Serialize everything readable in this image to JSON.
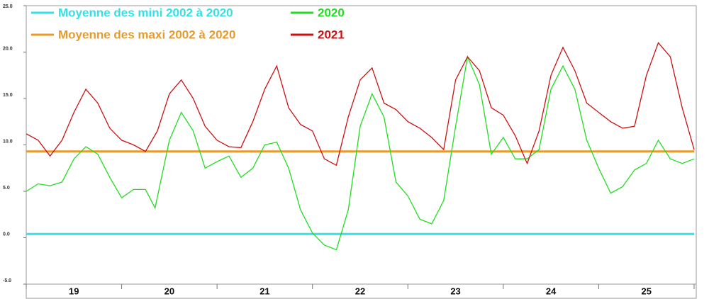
{
  "chart_data": {
    "type": "line",
    "categories": [
      "19",
      "20",
      "21",
      "22",
      "23",
      "24",
      "25"
    ],
    "xlim": [
      19,
      26
    ],
    "xticks": [
      19,
      20,
      21,
      22,
      23,
      24,
      25,
      26
    ],
    "ylim": [
      -5,
      25
    ],
    "yticks": [
      {
        "value": -5,
        "label": "-5.0"
      },
      {
        "value": 0,
        "label": "0.0"
      },
      {
        "value": 5,
        "label": "5.0"
      },
      {
        "value": 10,
        "label": "10.0"
      },
      {
        "value": 15,
        "label": "15.0"
      },
      {
        "value": 20,
        "label": "20.0"
      },
      {
        "value": 25,
        "label": "25.0"
      }
    ],
    "legend": "upper left",
    "series": [
      {
        "name": "Moyenne des mini 2002 à 2020",
        "color": "#33e0e6",
        "x": [
          19,
          26
        ],
        "values": [
          0.4,
          0.4
        ]
      },
      {
        "name": "Moyenne des maxi 2002 à 2020",
        "color": "#e89a2a",
        "x": [
          19,
          26
        ],
        "values": [
          9.3,
          9.3
        ]
      },
      {
        "name": "2020",
        "color": "#22dd22",
        "x": [
          19,
          19.125,
          19.25,
          19.375,
          19.5,
          19.625,
          19.75,
          19.875,
          20,
          20.125,
          20.25,
          20.35,
          20.5,
          20.625,
          20.75,
          20.875,
          21,
          21.125,
          21.25,
          21.375,
          21.5,
          21.625,
          21.75,
          21.875,
          22,
          22.125,
          22.25,
          22.375,
          22.5,
          22.625,
          22.75,
          22.875,
          23,
          23.125,
          23.25,
          23.375,
          23.5,
          23.625,
          23.75,
          23.875,
          24,
          24.125,
          24.25,
          24.375,
          24.5,
          24.625,
          24.75,
          24.875,
          25,
          25.125,
          25.25,
          25.375,
          25.5,
          25.625,
          25.75,
          25.875,
          26
        ],
        "values": [
          5.0,
          5.8,
          5.6,
          6.0,
          8.5,
          9.8,
          9.0,
          6.5,
          4.3,
          5.2,
          5.2,
          3.2,
          10.5,
          13.5,
          11.5,
          7.5,
          8.2,
          8.8,
          6.5,
          7.5,
          10.0,
          10.3,
          7.5,
          3.0,
          0.5,
          -0.8,
          -1.3,
          3.0,
          12.0,
          15.5,
          13.0,
          6.0,
          4.5,
          2.0,
          1.5,
          4.0,
          12.0,
          19.5,
          16.5,
          9.0,
          10.8,
          8.5,
          8.5,
          9.5,
          16.0,
          18.5,
          16.0,
          10.5,
          7.5,
          4.8,
          5.5,
          7.3,
          8.0,
          10.5,
          8.5,
          8.0,
          8.5
        ]
      },
      {
        "name": "2021",
        "color": "#cc1111",
        "x": [
          19,
          19.125,
          19.25,
          19.375,
          19.5,
          19.625,
          19.75,
          19.875,
          20,
          20.125,
          20.25,
          20.375,
          20.5,
          20.625,
          20.75,
          20.875,
          21,
          21.125,
          21.25,
          21.375,
          21.5,
          21.625,
          21.75,
          21.875,
          22,
          22.125,
          22.25,
          22.375,
          22.5,
          22.625,
          22.75,
          22.875,
          23,
          23.125,
          23.25,
          23.375,
          23.5,
          23.625,
          23.75,
          23.875,
          24,
          24.125,
          24.25,
          24.375,
          24.5,
          24.625,
          24.75,
          24.875,
          25,
          25.125,
          25.25,
          25.375,
          25.5,
          25.625,
          25.75,
          25.875,
          26
        ],
        "values": [
          11.2,
          10.5,
          8.8,
          10.5,
          13.5,
          16.0,
          14.5,
          11.8,
          10.5,
          10.0,
          9.3,
          11.5,
          15.5,
          17.0,
          15.0,
          12.0,
          10.5,
          9.8,
          9.7,
          12.5,
          16.0,
          18.5,
          14.0,
          12.2,
          11.5,
          8.5,
          7.8,
          13.0,
          17.0,
          18.3,
          14.5,
          13.8,
          12.5,
          11.8,
          10.8,
          9.5,
          17.0,
          19.5,
          18.0,
          14.0,
          13.2,
          11.0,
          8.0,
          11.5,
          17.5,
          20.5,
          18.0,
          14.5,
          13.5,
          12.5,
          11.8,
          12.0,
          17.5,
          21.0,
          19.5,
          14.0,
          9.5
        ]
      }
    ]
  }
}
